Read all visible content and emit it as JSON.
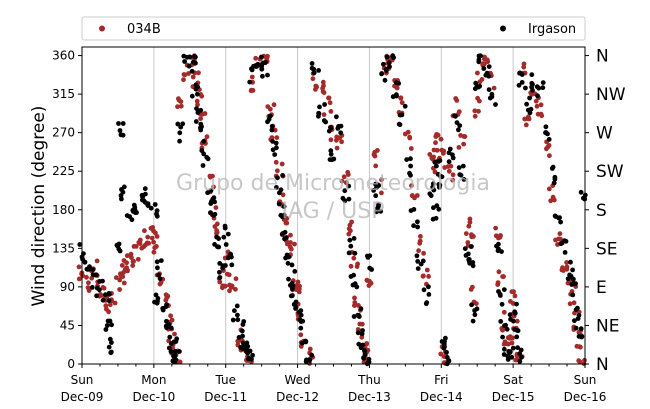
{
  "chart_data": {
    "type": "scatter",
    "ylabel": "Wind direction (degree)",
    "ylim": [
      0,
      370
    ],
    "yticks": [
      0,
      45,
      90,
      135,
      180,
      225,
      270,
      315,
      360
    ],
    "compass_labels": [
      {
        "deg": 0,
        "label": "N"
      },
      {
        "deg": 45,
        "label": "NE"
      },
      {
        "deg": 90,
        "label": "E"
      },
      {
        "deg": 135,
        "label": "SE"
      },
      {
        "deg": 180,
        "label": "S"
      },
      {
        "deg": 225,
        "label": "SW"
      },
      {
        "deg": 270,
        "label": "W"
      },
      {
        "deg": 315,
        "label": "NW"
      },
      {
        "deg": 360,
        "label": "N"
      }
    ],
    "xlim": [
      "2012-12-09",
      "2012-12-16"
    ],
    "xticks": [
      {
        "line1": "Sun",
        "line2": "Dec-09"
      },
      {
        "line1": "Mon",
        "line2": "Dec-10"
      },
      {
        "line1": "Tue",
        "line2": "Dec-11"
      },
      {
        "line1": "Wed",
        "line2": "Dec-12"
      },
      {
        "line1": "Thu",
        "line2": "Dec-13"
      },
      {
        "line1": "Fri",
        "line2": "Dec-14"
      },
      {
        "line1": "Sat",
        "line2": "Dec-15"
      },
      {
        "line1": "Sun",
        "line2": "Dec-16"
      }
    ],
    "grid": "vertical at day boundaries",
    "legend": "top, above plot",
    "watermark": [
      "Grupo de Micrometeorologia",
      "IAG / USP"
    ],
    "series": [
      {
        "name": "034B",
        "color": "#a52a2a",
        "points": [
          [
            "12-09 00:00",
            105
          ],
          [
            "12-09 02:00",
            95
          ],
          [
            "12-09 04:00",
            110
          ],
          [
            "12-09 06:00",
            85
          ],
          [
            "12-09 08:00",
            80
          ],
          [
            "12-09 09:00",
            70
          ],
          [
            "12-09 10:00",
            75
          ],
          [
            "12-09 12:00",
            95
          ],
          [
            "12-09 14:00",
            105
          ],
          [
            "12-09 15:00",
            110
          ],
          [
            "12-09 16:00",
            120
          ],
          [
            "12-09 18:00",
            130
          ],
          [
            "12-09 20:00",
            145
          ],
          [
            "12-09 22:00",
            150
          ],
          [
            "12-10 00:00",
            150
          ],
          [
            "12-10 01:00",
            140
          ],
          [
            "12-10 02:00",
            95
          ],
          [
            "12-10 04:00",
            70
          ],
          [
            "12-10 05:00",
            50
          ],
          [
            "12-10 06:00",
            30
          ],
          [
            "12-10 07:00",
            15
          ],
          [
            "12-10 08:00",
            5
          ],
          [
            "12-10 09:00",
            310
          ],
          [
            "12-10 11:00",
            340
          ],
          [
            "12-10 13:00",
            355
          ],
          [
            "12-10 14:00",
            330
          ],
          [
            "12-10 15:00",
            310
          ],
          [
            "12-10 16:00",
            290
          ],
          [
            "12-10 17:00",
            260
          ],
          [
            "12-10 19:00",
            210
          ],
          [
            "12-10 20:00",
            180
          ],
          [
            "12-10 21:00",
            160
          ],
          [
            "12-10 23:00",
            100
          ],
          [
            "12-11 00:00",
            120
          ],
          [
            "12-11 01:00",
            95
          ],
          [
            "12-11 03:00",
            95
          ],
          [
            "12-11 05:00",
            30
          ],
          [
            "12-11 06:00",
            20
          ],
          [
            "12-11 07:00",
            10
          ],
          [
            "12-11 08:00",
            5
          ],
          [
            "12-11 09:00",
            330
          ],
          [
            "12-11 11:00",
            350
          ],
          [
            "12-11 13:00",
            355
          ],
          [
            "12-11 15:00",
            300
          ],
          [
            "12-11 16:00",
            270
          ],
          [
            "12-11 18:00",
            230
          ],
          [
            "12-11 19:00",
            195
          ],
          [
            "12-11 20:00",
            160
          ],
          [
            "12-11 21:00",
            140
          ],
          [
            "12-11 22:00",
            130
          ],
          [
            "12-11 23:00",
            90
          ],
          [
            "12-12 00:00",
            80
          ],
          [
            "12-12 01:00",
            60
          ],
          [
            "12-12 02:00",
            30
          ],
          [
            "12-12 04:00",
            10
          ],
          [
            "12-12 06:00",
            330
          ],
          [
            "12-12 08:00",
            320
          ],
          [
            "12-12 10:00",
            300
          ],
          [
            "12-12 12:00",
            270
          ],
          [
            "12-12 14:00",
            260
          ],
          [
            "12-12 16:00",
            220
          ],
          [
            "12-12 18:00",
            160
          ],
          [
            "12-12 19:00",
            120
          ],
          [
            "12-12 20:00",
            70
          ],
          [
            "12-12 21:00",
            40
          ],
          [
            "12-12 22:00",
            20
          ],
          [
            "12-12 23:00",
            10
          ],
          [
            "12-13 00:00",
            90
          ],
          [
            "12-13 02:00",
            240
          ],
          [
            "12-13 03:00",
            210
          ],
          [
            "12-13 05:00",
            350
          ],
          [
            "12-13 07:00",
            355
          ],
          [
            "12-13 09:00",
            330
          ],
          [
            "12-13 11:00",
            300
          ],
          [
            "12-13 13:00",
            260
          ],
          [
            "12-13 15:00",
            200
          ],
          [
            "12-13 17:00",
            140
          ],
          [
            "12-13 19:00",
            100
          ],
          [
            "12-13 21:00",
            250
          ],
          [
            "12-13 22:00",
            230
          ],
          [
            "12-13 23:00",
            260
          ],
          [
            "12-14 00:00",
            240
          ],
          [
            "12-14 01:00",
            10
          ],
          [
            "12-14 02:00",
            5
          ],
          [
            "12-14 03:00",
            220
          ],
          [
            "12-14 05:00",
            300
          ],
          [
            "12-14 07:00",
            260
          ],
          [
            "12-14 09:00",
            160
          ],
          [
            "12-14 10:00",
            140
          ],
          [
            "12-14 11:00",
            80
          ],
          [
            "12-14 12:00",
            300
          ],
          [
            "12-14 13:00",
            340
          ],
          [
            "12-14 15:00",
            350
          ],
          [
            "12-14 17:00",
            330
          ],
          [
            "12-14 19:00",
            150
          ],
          [
            "12-14 20:00",
            100
          ],
          [
            "12-14 21:00",
            50
          ],
          [
            "12-14 22:00",
            30
          ],
          [
            "12-14 23:00",
            20
          ],
          [
            "12-15 00:00",
            80
          ],
          [
            "12-15 01:00",
            50
          ],
          [
            "12-15 02:00",
            5
          ],
          [
            "12-15 03:00",
            340
          ],
          [
            "12-15 05:00",
            280
          ],
          [
            "12-15 07:00",
            310
          ],
          [
            "12-15 09:00",
            300
          ],
          [
            "12-15 11:00",
            250
          ],
          [
            "12-15 13:00",
            200
          ],
          [
            "12-15 15:00",
            150
          ],
          [
            "12-15 17:00",
            120
          ],
          [
            "12-15 19:00",
            100
          ],
          [
            "12-15 20:00",
            80
          ],
          [
            "12-15 21:00",
            50
          ],
          [
            "12-15 22:00",
            30
          ],
          [
            "12-15 23:00",
            10
          ]
        ]
      },
      {
        "name": "Irgason",
        "color": "#000000",
        "points": [
          [
            "12-09 00:00",
            130
          ],
          [
            "12-09 02:00",
            115
          ],
          [
            "12-09 04:00",
            100
          ],
          [
            "12-09 06:00",
            90
          ],
          [
            "12-09 08:00",
            85
          ],
          [
            "12-09 09:00",
            50
          ],
          [
            "12-09 10:00",
            20
          ],
          [
            "12-09 12:00",
            140
          ],
          [
            "12-09 13:00",
            270
          ],
          [
            "12-09 14:00",
            200
          ],
          [
            "12-09 16:00",
            175
          ],
          [
            "12-09 18:00",
            185
          ],
          [
            "12-09 20:00",
            195
          ],
          [
            "12-09 22:00",
            190
          ],
          [
            "12-10 00:00",
            180
          ],
          [
            "12-10 01:00",
            80
          ],
          [
            "12-10 02:00",
            110
          ],
          [
            "12-10 04:00",
            60
          ],
          [
            "12-10 05:00",
            40
          ],
          [
            "12-10 06:00",
            25
          ],
          [
            "12-10 07:00",
            10
          ],
          [
            "12-10 08:00",
            20
          ],
          [
            "12-10 09:00",
            270
          ],
          [
            "12-10 11:00",
            355
          ],
          [
            "12-10 13:00",
            350
          ],
          [
            "12-10 14:00",
            320
          ],
          [
            "12-10 15:00",
            290
          ],
          [
            "12-10 16:00",
            270
          ],
          [
            "12-10 17:00",
            240
          ],
          [
            "12-10 19:00",
            200
          ],
          [
            "12-10 20:00",
            180
          ],
          [
            "12-10 21:00",
            140
          ],
          [
            "12-10 23:00",
            110
          ],
          [
            "12-11 00:00",
            150
          ],
          [
            "12-11 01:00",
            120
          ],
          [
            "12-11 03:00",
            60
          ],
          [
            "12-11 05:00",
            40
          ],
          [
            "12-11 06:00",
            25
          ],
          [
            "12-11 07:00",
            15
          ],
          [
            "12-11 08:00",
            10
          ],
          [
            "12-11 09:00",
            340
          ],
          [
            "12-11 11:00",
            355
          ],
          [
            "12-11 13:00",
            345
          ],
          [
            "12-11 15:00",
            280
          ],
          [
            "12-11 16:00",
            250
          ],
          [
            "12-11 18:00",
            210
          ],
          [
            "12-11 19:00",
            180
          ],
          [
            "12-11 20:00",
            150
          ],
          [
            "12-11 21:00",
            120
          ],
          [
            "12-11 22:00",
            100
          ],
          [
            "12-11 23:00",
            80
          ],
          [
            "12-12 00:00",
            70
          ],
          [
            "12-12 01:00",
            50
          ],
          [
            "12-12 02:00",
            20
          ],
          [
            "12-12 04:00",
            5
          ],
          [
            "12-12 06:00",
            345
          ],
          [
            "12-12 08:00",
            300
          ],
          [
            "12-12 10:00",
            280
          ],
          [
            "12-12 12:00",
            240
          ],
          [
            "12-12 14:00",
            280
          ],
          [
            "12-12 16:00",
            200
          ],
          [
            "12-12 18:00",
            140
          ],
          [
            "12-12 19:00",
            100
          ],
          [
            "12-12 20:00",
            60
          ],
          [
            "12-12 21:00",
            30
          ],
          [
            "12-12 22:00",
            15
          ],
          [
            "12-12 23:00",
            5
          ],
          [
            "12-13 00:00",
            120
          ],
          [
            "12-13 02:00",
            200
          ],
          [
            "12-13 03:00",
            180
          ],
          [
            "12-13 05:00",
            340
          ],
          [
            "12-13 07:00",
            355
          ],
          [
            "12-13 09:00",
            320
          ],
          [
            "12-13 11:00",
            290
          ],
          [
            "12-13 13:00",
            230
          ],
          [
            "12-13 15:00",
            170
          ],
          [
            "12-13 17:00",
            120
          ],
          [
            "12-13 19:00",
            80
          ],
          [
            "12-13 21:00",
            200
          ],
          [
            "12-13 22:00",
            180
          ],
          [
            "12-13 23:00",
            230
          ],
          [
            "12-14 00:00",
            210
          ],
          [
            "12-14 01:00",
            20
          ],
          [
            "12-14 02:00",
            10
          ],
          [
            "12-14 03:00",
            240
          ],
          [
            "12-14 05:00",
            280
          ],
          [
            "12-14 07:00",
            220
          ],
          [
            "12-14 09:00",
            130
          ],
          [
            "12-14 10:00",
            120
          ],
          [
            "12-14 11:00",
            60
          ],
          [
            "12-14 12:00",
            320
          ],
          [
            "12-14 13:00",
            355
          ],
          [
            "12-14 15:00",
            345
          ],
          [
            "12-14 17:00",
            310
          ],
          [
            "12-14 19:00",
            130
          ],
          [
            "12-14 20:00",
            80
          ],
          [
            "12-14 21:00",
            40
          ],
          [
            "12-14 22:00",
            20
          ],
          [
            "12-14 23:00",
            10
          ],
          [
            "12-15 00:00",
            60
          ],
          [
            "12-15 01:00",
            40
          ],
          [
            "12-15 02:00",
            10
          ],
          [
            "12-15 03:00",
            330
          ],
          [
            "12-15 05:00",
            300
          ],
          [
            "12-15 07:00",
            330
          ],
          [
            "12-15 09:00",
            320
          ],
          [
            "12-15 11:00",
            270
          ],
          [
            "12-15 13:00",
            220
          ],
          [
            "12-15 15:00",
            170
          ],
          [
            "12-15 17:00",
            140
          ],
          [
            "12-15 19:00",
            110
          ],
          [
            "12-15 20:00",
            90
          ],
          [
            "12-15 21:00",
            60
          ],
          [
            "12-15 22:00",
            40
          ],
          [
            "12-15 23:00",
            200
          ]
        ]
      }
    ]
  }
}
